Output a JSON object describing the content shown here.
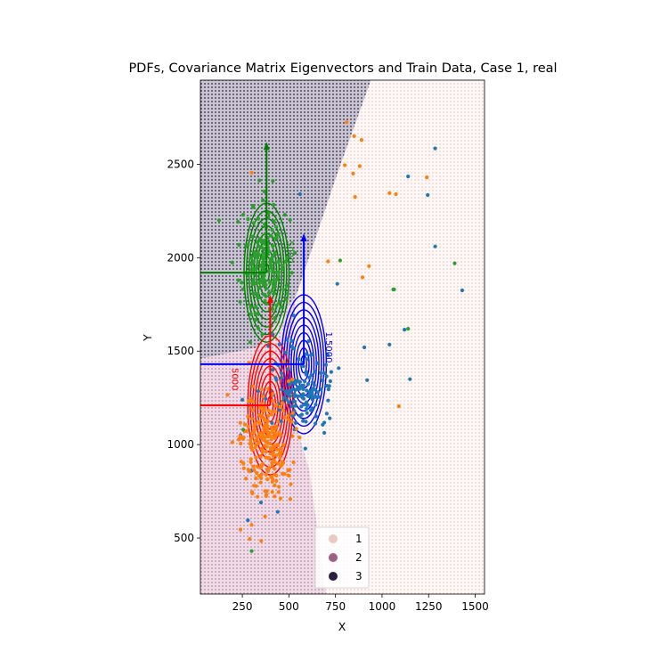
{
  "chart_data": {
    "type": "scatter",
    "title": "PDFs, Covariance Matrix Eigenvectors and Train Data, Case 1, real",
    "xlabel": "X",
    "ylabel": "Y",
    "xlim": [
      25,
      1550
    ],
    "ylim": [
      200,
      2950
    ],
    "xticks": [
      "250",
      "500",
      "750",
      "1000",
      "1250",
      "1500"
    ],
    "xtick_values": [
      250,
      500,
      750,
      1000,
      1250,
      1500
    ],
    "yticks": [
      "500",
      "1000",
      "1500",
      "2000",
      "2500"
    ],
    "ytick_values": [
      500,
      1000,
      1500,
      2000,
      2500
    ],
    "grid": false,
    "legend": {
      "placement": "lower-center",
      "entries": [
        {
          "label": "1",
          "color": "#e9c9c0"
        },
        {
          "label": "2",
          "color": "#a25d86"
        },
        {
          "label": "3",
          "color": "#2d1e3e"
        }
      ]
    },
    "decision_regions": [
      {
        "label": "1",
        "color": "#f4dcd6"
      },
      {
        "label": "2",
        "color": "#c98fab"
      },
      {
        "label": "3",
        "color": "#3d3050"
      }
    ],
    "gaussians": [
      {
        "name": "blue",
        "color": "#0000ff",
        "mean": [
          580,
          1430
        ],
        "std": [
          60,
          185
        ],
        "eigenvector_tip": [
          580,
          2130
        ]
      },
      {
        "name": "red",
        "color": "#ff0000",
        "mean": [
          400,
          1210
        ],
        "std": [
          60,
          185
        ],
        "eigenvector_tip": [
          400,
          1800
        ]
      },
      {
        "name": "green",
        "color": "#008000",
        "mean": [
          380,
          1920
        ],
        "std": [
          60,
          185
        ],
        "eigenvector_tip": [
          380,
          2620
        ]
      }
    ],
    "contour_labels": [
      {
        "text": "1.5000",
        "x": 700,
        "y": 1520,
        "color": "#0000ff"
      },
      {
        "text": "5000",
        "x": 490,
        "y": 2030,
        "color": "#008000"
      },
      {
        "text": "5000",
        "x": 195,
        "y": 1350,
        "color": "#ff0000"
      }
    ],
    "scatter_series": [
      {
        "name": "blue",
        "color": "#1f77b4",
        "center": [
          570,
          1320
        ],
        "spread": [
          90,
          120
        ],
        "count": 150,
        "seed": 11,
        "outliers": [
          [
            1285,
            2585
          ],
          [
            1140,
            2435
          ],
          [
            1245,
            2335
          ],
          [
            1285,
            2060
          ],
          [
            1430,
            1825
          ],
          [
            1120,
            1615
          ],
          [
            1150,
            1350
          ],
          [
            760,
            1860
          ],
          [
            240,
            1050
          ],
          [
            280,
            595
          ],
          [
            350,
            690
          ],
          [
            440,
            640
          ],
          [
            1040,
            1535
          ],
          [
            905,
            1520
          ],
          [
            920,
            1345
          ],
          [
            560,
            2340
          ],
          [
            250,
            1240
          ],
          [
            300,
            860
          ]
        ]
      },
      {
        "name": "orange",
        "color": "#ff7f0e",
        "center": [
          390,
          1020
        ],
        "spread": [
          70,
          150
        ],
        "count": 230,
        "seed": 23,
        "outliers": [
          [
            810,
            2725
          ],
          [
            850,
            2650
          ],
          [
            880,
            2490
          ],
          [
            800,
            2495
          ],
          [
            845,
            2450
          ],
          [
            890,
            2630
          ],
          [
            855,
            2325
          ],
          [
            1040,
            2345
          ],
          [
            1075,
            2340
          ],
          [
            1240,
            2430
          ],
          [
            930,
            1955
          ],
          [
            710,
            1980
          ],
          [
            895,
            1895
          ],
          [
            1090,
            1205
          ],
          [
            300,
            2455
          ],
          [
            290,
            495
          ],
          [
            240,
            545
          ],
          [
            300,
            570
          ]
        ]
      },
      {
        "name": "green",
        "color": "#2ca02c",
        "center": [
          370,
          2000
        ],
        "spread": [
          60,
          150
        ],
        "count": 180,
        "seed": 37,
        "outliers": [
          [
            1060,
            1830
          ],
          [
            1065,
            1830
          ],
          [
            1140,
            1620
          ],
          [
            1390,
            1970
          ],
          [
            775,
            1985
          ],
          [
            300,
            430
          ],
          [
            255,
            1080
          ]
        ]
      }
    ]
  }
}
